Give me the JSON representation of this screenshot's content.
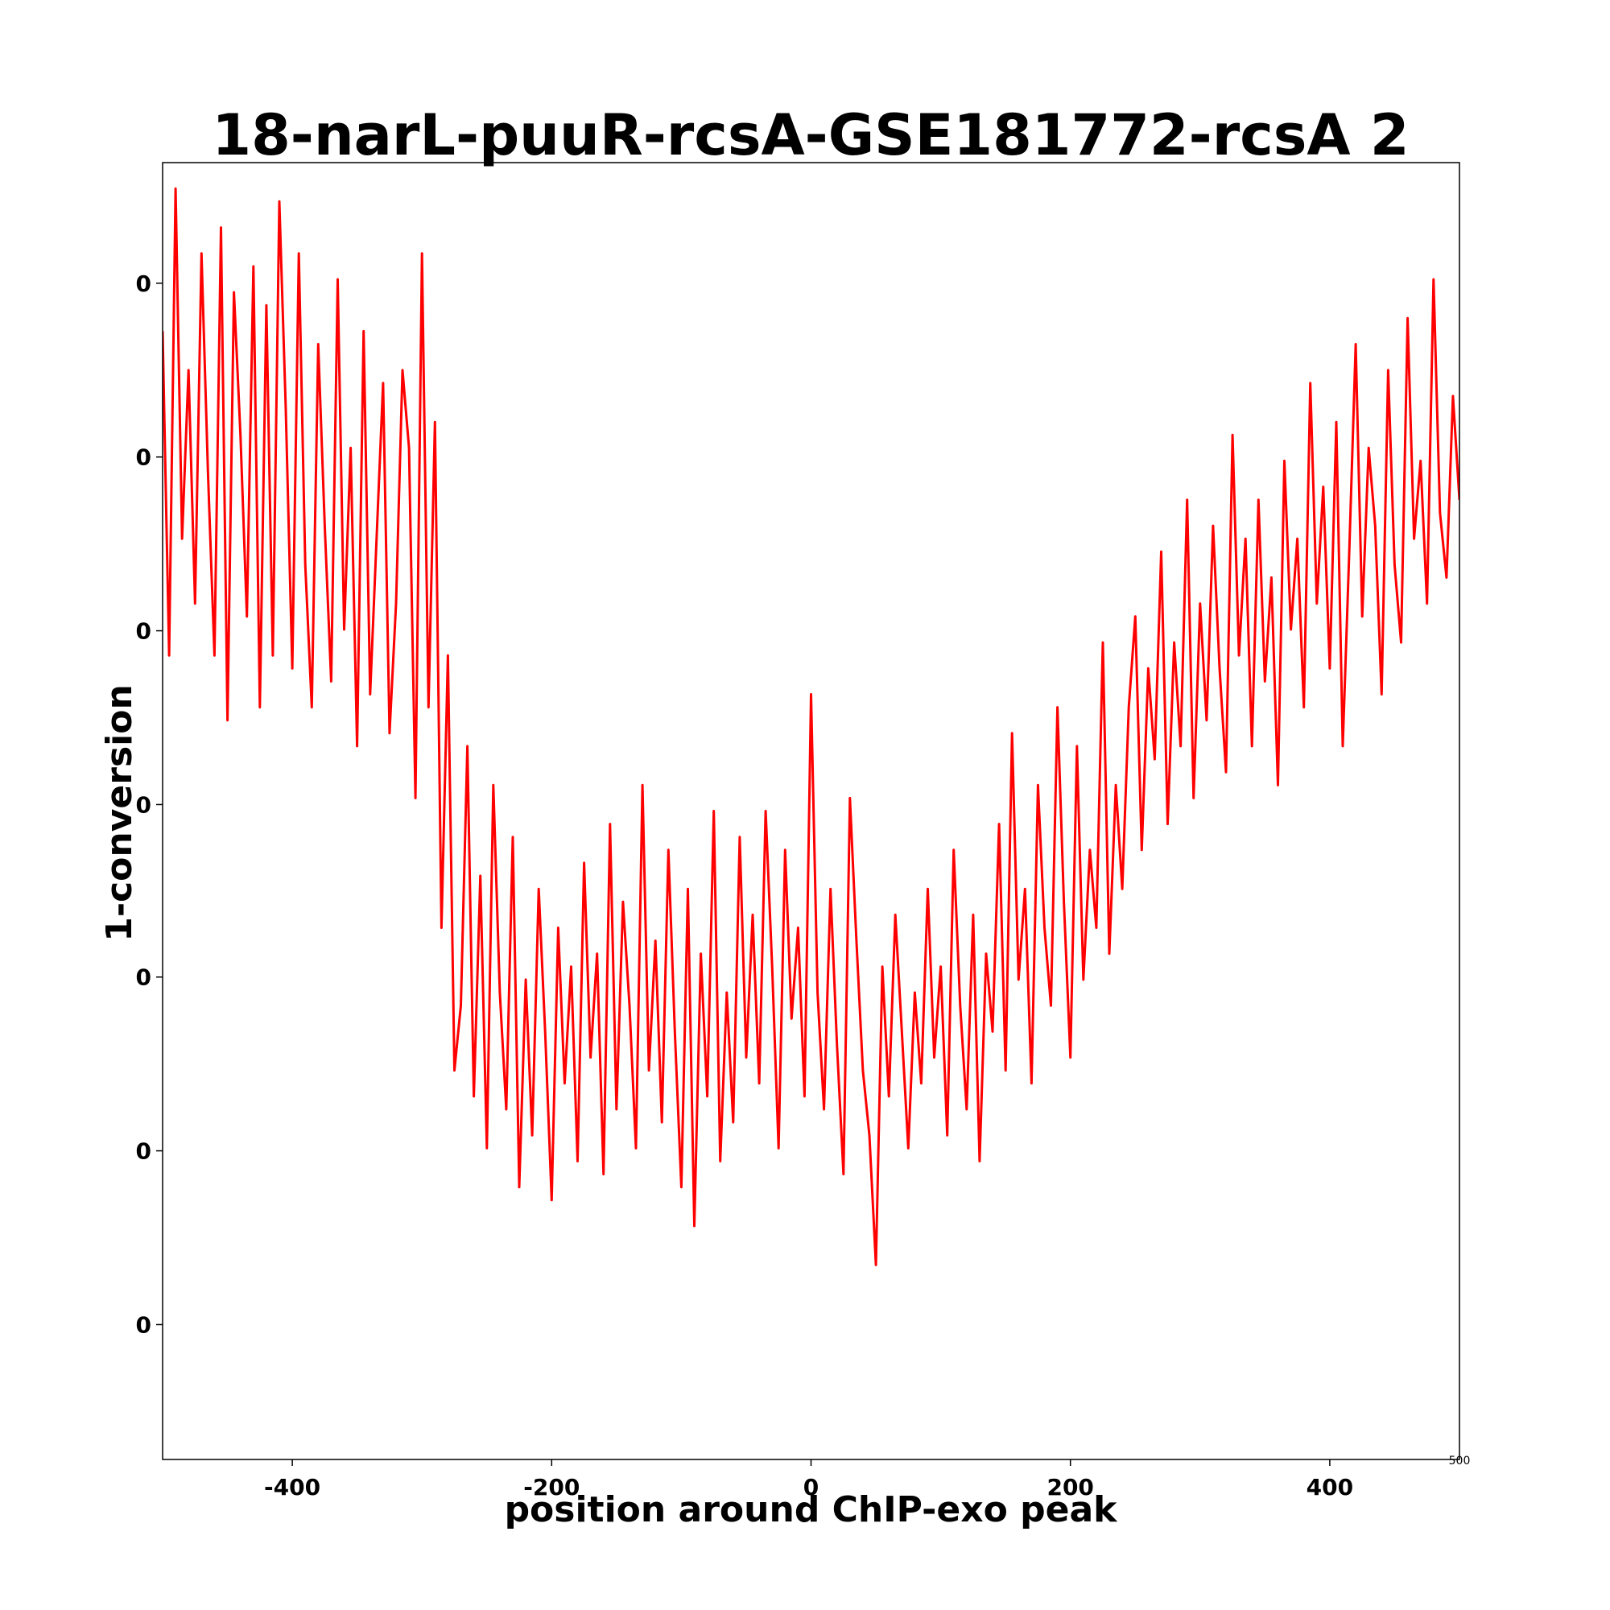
{
  "chart_data": {
    "type": "line",
    "title": "18-narL-puuR-rcsA-GSE181772-rcsA 2",
    "xlabel": "position around ChIP-exo peak",
    "ylabel": "1-conversion",
    "xlim": [
      -500,
      500
    ],
    "ylim": [
      0.0,
      1.0
    ],
    "grid": false,
    "legend": "none",
    "x_ticks": [
      -400,
      -200,
      0,
      200,
      400
    ],
    "x_tick_labels": [
      "-400",
      "-200",
      "0",
      "200",
      "400"
    ],
    "x_edge_tick_label": "500",
    "y_ticks": [
      0.104,
      0.238,
      0.372,
      0.505,
      0.639,
      0.773,
      0.907
    ],
    "y_tick_labels": [
      "0",
      "0",
      "0",
      "0",
      "0",
      "0",
      "0"
    ],
    "series": [
      {
        "color": "#ff0000",
        "x": [
          -500,
          -495,
          -490,
          -485,
          -480,
          -475,
          -470,
          -465,
          -460,
          -455,
          -450,
          -445,
          -440,
          -435,
          -430,
          -425,
          -420,
          -415,
          -410,
          -405,
          -400,
          -395,
          -390,
          -385,
          -380,
          -375,
          -370,
          -365,
          -360,
          -355,
          -350,
          -345,
          -340,
          -335,
          -330,
          -325,
          -320,
          -315,
          -310,
          -305,
          -300,
          -295,
          -290,
          -285,
          -280,
          -275,
          -270,
          -265,
          -260,
          -255,
          -250,
          -245,
          -240,
          -235,
          -230,
          -225,
          -220,
          -215,
          -210,
          -205,
          -200,
          -195,
          -190,
          -185,
          -180,
          -175,
          -170,
          -165,
          -160,
          -155,
          -150,
          -145,
          -140,
          -135,
          -130,
          -125,
          -120,
          -115,
          -110,
          -105,
          -100,
          -95,
          -90,
          -85,
          -80,
          -75,
          -70,
          -65,
          -60,
          -55,
          -50,
          -45,
          -40,
          -35,
          -30,
          -25,
          -20,
          -15,
          -10,
          -5,
          0,
          5,
          10,
          15,
          20,
          25,
          30,
          35,
          40,
          45,
          50,
          55,
          60,
          65,
          70,
          75,
          80,
          85,
          90,
          95,
          100,
          105,
          110,
          115,
          120,
          125,
          130,
          135,
          140,
          145,
          150,
          155,
          160,
          165,
          170,
          175,
          180,
          185,
          190,
          195,
          200,
          205,
          210,
          215,
          220,
          225,
          230,
          235,
          240,
          245,
          250,
          255,
          260,
          265,
          270,
          275,
          280,
          285,
          290,
          295,
          300,
          305,
          310,
          315,
          320,
          325,
          330,
          335,
          340,
          345,
          350,
          355,
          360,
          365,
          370,
          375,
          380,
          385,
          390,
          395,
          400,
          405,
          410,
          415,
          420,
          425,
          430,
          435,
          440,
          445,
          450,
          455,
          460,
          465,
          470,
          475,
          480,
          485,
          490,
          495,
          500
        ],
        "y": [
          0.87,
          0.62,
          0.98,
          0.71,
          0.84,
          0.66,
          0.93,
          0.76,
          0.62,
          0.95,
          0.57,
          0.9,
          0.79,
          0.65,
          0.92,
          0.58,
          0.89,
          0.62,
          0.97,
          0.81,
          0.61,
          0.93,
          0.69,
          0.58,
          0.86,
          0.72,
          0.6,
          0.91,
          0.64,
          0.78,
          0.55,
          0.87,
          0.59,
          0.71,
          0.83,
          0.56,
          0.66,
          0.84,
          0.78,
          0.51,
          0.93,
          0.58,
          0.8,
          0.41,
          0.62,
          0.3,
          0.35,
          0.55,
          0.28,
          0.45,
          0.24,
          0.52,
          0.36,
          0.27,
          0.48,
          0.21,
          0.37,
          0.25,
          0.44,
          0.33,
          0.2,
          0.41,
          0.29,
          0.38,
          0.23,
          0.46,
          0.31,
          0.39,
          0.22,
          0.49,
          0.27,
          0.43,
          0.35,
          0.24,
          0.52,
          0.3,
          0.4,
          0.26,
          0.47,
          0.33,
          0.21,
          0.44,
          0.18,
          0.39,
          0.28,
          0.5,
          0.23,
          0.36,
          0.26,
          0.48,
          0.31,
          0.42,
          0.29,
          0.5,
          0.38,
          0.24,
          0.47,
          0.34,
          0.41,
          0.28,
          0.59,
          0.36,
          0.27,
          0.44,
          0.32,
          0.22,
          0.51,
          0.4,
          0.3,
          0.25,
          0.15,
          0.38,
          0.28,
          0.42,
          0.33,
          0.24,
          0.36,
          0.29,
          0.44,
          0.31,
          0.38,
          0.25,
          0.47,
          0.35,
          0.27,
          0.42,
          0.23,
          0.39,
          0.33,
          0.49,
          0.3,
          0.56,
          0.37,
          0.44,
          0.29,
          0.52,
          0.41,
          0.35,
          0.58,
          0.43,
          0.31,
          0.55,
          0.37,
          0.47,
          0.41,
          0.63,
          0.39,
          0.52,
          0.44,
          0.58,
          0.65,
          0.47,
          0.61,
          0.54,
          0.7,
          0.49,
          0.63,
          0.55,
          0.74,
          0.51,
          0.66,
          0.57,
          0.72,
          0.61,
          0.53,
          0.79,
          0.62,
          0.71,
          0.55,
          0.74,
          0.6,
          0.68,
          0.52,
          0.77,
          0.64,
          0.71,
          0.58,
          0.83,
          0.66,
          0.75,
          0.61,
          0.8,
          0.55,
          0.7,
          0.86,
          0.65,
          0.78,
          0.72,
          0.59,
          0.84,
          0.69,
          0.63,
          0.88,
          0.71,
          0.77,
          0.66,
          0.91,
          0.73,
          0.68,
          0.82,
          0.74
        ]
      }
    ]
  }
}
